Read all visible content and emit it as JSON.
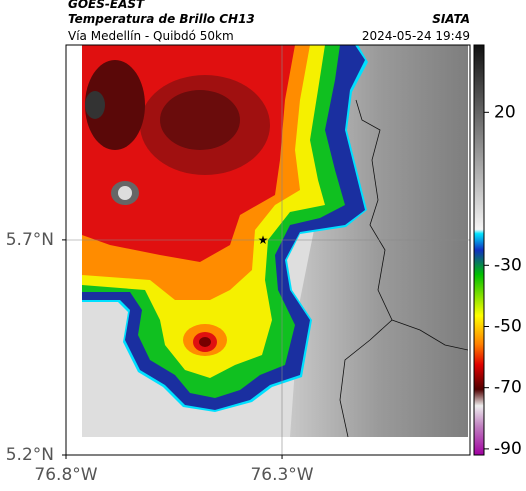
{
  "header": {
    "source": "GOES-EAST",
    "title": "Temperatura de Brillo CH13",
    "org": "SIATA",
    "subtitle": "Vía Medellín - Quibdó 50km",
    "timestamp": "2024-05-24 19:49"
  },
  "map": {
    "xlim": [
      -76.8,
      -75.865
    ],
    "ylim": [
      5.2,
      6.153
    ],
    "xticks": [
      {
        "value": -76.8,
        "label": "76.8°W"
      },
      {
        "value": -76.3,
        "label": "76.3°W"
      }
    ],
    "yticks": [
      {
        "value": 5.2,
        "label": "5.2°N"
      },
      {
        "value": 5.7,
        "label": "5.7°N"
      }
    ]
  },
  "colorbar": {
    "lim": [
      -92,
      42
    ],
    "ticks": [
      20,
      -30,
      -50,
      -70,
      -90
    ]
  }
}
